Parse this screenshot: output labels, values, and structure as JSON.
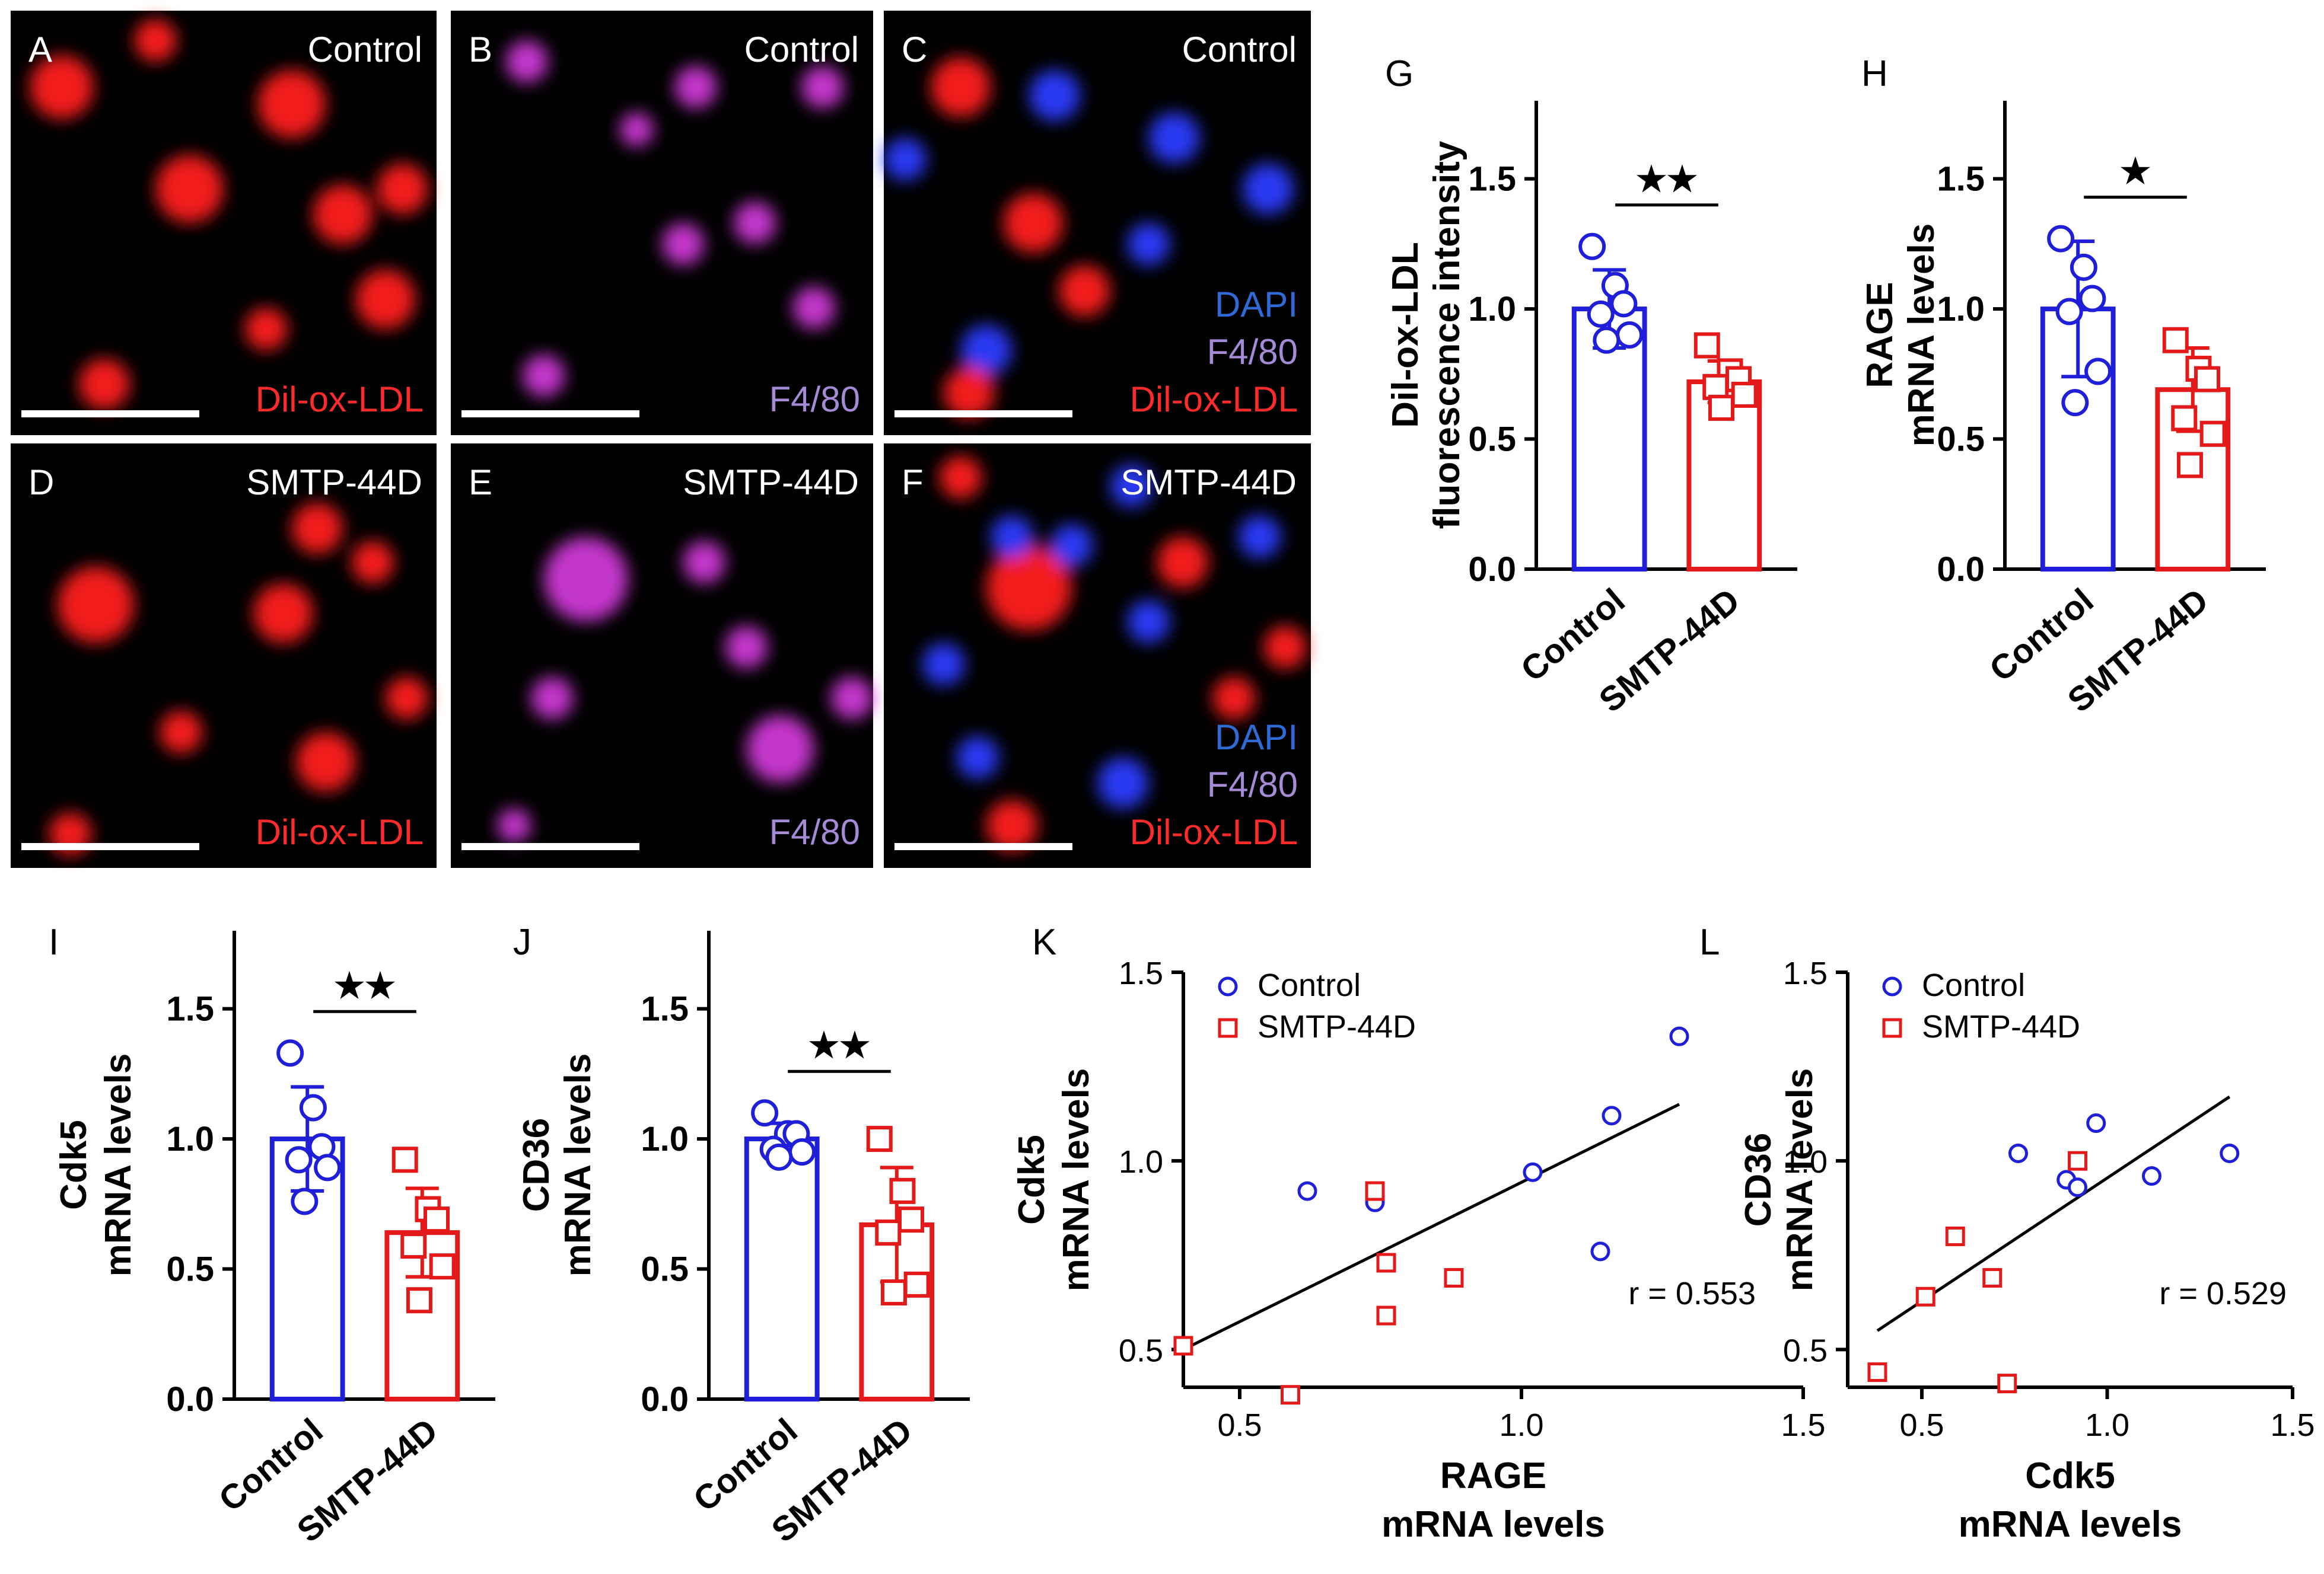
{
  "image_panels": [
    {
      "letter": "A",
      "condition": "Control",
      "channels": [
        {
          "text": "Dil-ox-LDL",
          "color": "#ff2a2a"
        }
      ],
      "dominant": "red"
    },
    {
      "letter": "B",
      "condition": "Control",
      "channels": [
        {
          "text": "F4/80",
          "color": "#a58bd6"
        }
      ],
      "dominant": "magenta"
    },
    {
      "letter": "C",
      "condition": "Control",
      "channels": [
        {
          "text": "DAPI",
          "color": "#2f6bd6"
        },
        {
          "text": "F4/80",
          "color": "#a58bd6"
        },
        {
          "text": "Dil-ox-LDL",
          "color": "#ff2a2a"
        }
      ],
      "dominant": "merge"
    },
    {
      "letter": "D",
      "condition": "SMTP-44D",
      "channels": [
        {
          "text": "Dil-ox-LDL",
          "color": "#ff2a2a"
        }
      ],
      "dominant": "red"
    },
    {
      "letter": "E",
      "condition": "SMTP-44D",
      "channels": [
        {
          "text": "F4/80",
          "color": "#a58bd6"
        }
      ],
      "dominant": "magenta"
    },
    {
      "letter": "F",
      "condition": "SMTP-44D",
      "channels": [
        {
          "text": "DAPI",
          "color": "#2f6bd6"
        },
        {
          "text": "F4/80",
          "color": "#a58bd6"
        },
        {
          "text": "Dil-ox-LDL",
          "color": "#ff2a2a"
        }
      ],
      "dominant": "merge"
    }
  ],
  "colors": {
    "control": "#1f1fd9",
    "smtp": "#e41a1a"
  },
  "chart_data": [
    {
      "panel": "G",
      "type": "bar",
      "categories": [
        "Control",
        "SMTP-44D"
      ],
      "ylabel_lines": [
        "Dil-ox-LDL",
        "fluorescence intensity"
      ],
      "ylim": [
        0,
        1.8
      ],
      "yticks": [
        "0.0",
        "0.5",
        "1.0",
        "1.5"
      ],
      "means": [
        1.0,
        0.72
      ],
      "sd": [
        0.15,
        0.08
      ],
      "points": [
        [
          1.24,
          1.09,
          1.02,
          0.98,
          0.9,
          0.88
        ],
        [
          0.86,
          0.76,
          0.73,
          0.7,
          0.67,
          0.62
        ]
      ],
      "significance": "★★"
    },
    {
      "panel": "H",
      "type": "bar",
      "categories": [
        "Control",
        "SMTP-44D"
      ],
      "ylabel_lines": [
        "RAGE",
        "mRNA levels"
      ],
      "ylim": [
        0,
        1.8
      ],
      "yticks": [
        "0.0",
        "0.5",
        "1.0",
        "1.5"
      ],
      "means": [
        1.0,
        0.69
      ],
      "sd": [
        0.26,
        0.16
      ],
      "points": [
        [
          1.27,
          1.16,
          1.04,
          0.99,
          0.76,
          0.64
        ],
        [
          0.88,
          0.77,
          0.73,
          0.58,
          0.52,
          0.4
        ]
      ],
      "significance": "★"
    },
    {
      "panel": "I",
      "type": "bar",
      "categories": [
        "Control",
        "SMTP-44D"
      ],
      "ylabel_lines": [
        "Cdk5",
        "mRNA levels"
      ],
      "ylim": [
        0,
        1.8
      ],
      "yticks": [
        "0.0",
        "0.5",
        "1.0",
        "1.5"
      ],
      "means": [
        1.0,
        0.64
      ],
      "sd": [
        0.2,
        0.17
      ],
      "points": [
        [
          1.33,
          1.12,
          0.97,
          0.92,
          0.89,
          0.76
        ],
        [
          0.92,
          0.73,
          0.69,
          0.59,
          0.51,
          0.38
        ]
      ],
      "significance": "★★"
    },
    {
      "panel": "J",
      "type": "bar",
      "categories": [
        "Control",
        "SMTP-44D"
      ],
      "ylabel_lines": [
        "CD36",
        "mRNA levels"
      ],
      "ylim": [
        0,
        1.8
      ],
      "yticks": [
        "0.0",
        "0.5",
        "1.0",
        "1.5"
      ],
      "means": [
        1.0,
        0.67
      ],
      "sd": [
        0.06,
        0.22
      ],
      "points": [
        [
          1.1,
          1.02,
          1.02,
          0.96,
          0.95,
          0.93
        ],
        [
          1.0,
          0.8,
          0.69,
          0.64,
          0.44,
          0.41
        ]
      ],
      "significance": "★★"
    },
    {
      "panel": "K",
      "type": "scatter",
      "xlabel_lines": [
        "RAGE",
        "mRNA levels"
      ],
      "ylabel_lines": [
        "Cdk5",
        "mRNA levels"
      ],
      "xlim": [
        0.4,
        1.5
      ],
      "ylim": [
        0.4,
        1.5
      ],
      "xticks": [
        "0.5",
        "1.0",
        "1.5"
      ],
      "yticks": [
        "0.5",
        "1.0",
        "1.5"
      ],
      "series": [
        {
          "name": "Control",
          "x": [
            0.62,
            0.74,
            1.02,
            1.16,
            1.28,
            1.14
          ],
          "y": [
            0.92,
            0.89,
            0.97,
            1.12,
            1.33,
            0.76
          ]
        },
        {
          "name": "SMTP-44D",
          "x": [
            0.4,
            0.59,
            0.74,
            0.76,
            0.76,
            0.88
          ],
          "y": [
            0.51,
            0.38,
            0.92,
            0.73,
            0.59,
            0.69
          ]
        }
      ],
      "fit": {
        "x": [
          0.4,
          1.28
        ],
        "y": [
          0.5,
          1.15
        ]
      },
      "annotation": "r = 0.553"
    },
    {
      "panel": "L",
      "type": "scatter",
      "xlabel_lines": [
        "Cdk5",
        "mRNA levels"
      ],
      "ylabel_lines": [
        "CD36",
        "mRNA levels"
      ],
      "xlim": [
        0.3,
        1.5
      ],
      "ylim": [
        0.4,
        1.5
      ],
      "xticks": [
        "0.5",
        "1.0",
        "1.5"
      ],
      "yticks": [
        "0.5",
        "1.0",
        "1.5"
      ],
      "series": [
        {
          "name": "Control",
          "x": [
            0.76,
            0.89,
            0.92,
            0.97,
            1.12,
            1.33
          ],
          "y": [
            1.02,
            0.95,
            0.93,
            1.1,
            0.96,
            1.02
          ]
        },
        {
          "name": "SMTP-44D",
          "x": [
            0.38,
            0.51,
            0.59,
            0.69,
            0.73,
            0.92
          ],
          "y": [
            0.44,
            0.64,
            0.8,
            0.69,
            0.41,
            1.0
          ]
        }
      ],
      "fit": {
        "x": [
          0.38,
          1.33
        ],
        "y": [
          0.55,
          1.17
        ]
      },
      "annotation": "r = 0.529"
    }
  ]
}
